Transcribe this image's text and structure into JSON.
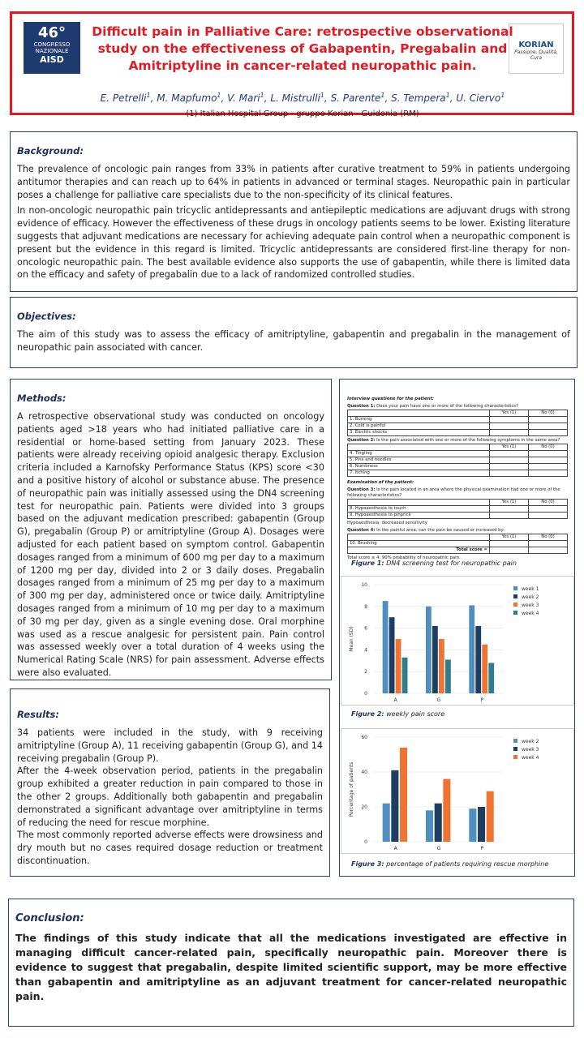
{
  "header": {
    "title": "Difficult pain in Palliative Care: retrospective observational study on the effectiveness of Gabapentin, Pregabalin and Amitriptyline in cancer-related neuropathic pain.",
    "authors": [
      {
        "name": "E. Petrelli",
        "sup": "1"
      },
      {
        "name": "M. Mapfumo",
        "sup": "1"
      },
      {
        "name": "V. Mari",
        "sup": "1"
      },
      {
        "name": "L. Mistrulli",
        "sup": "1"
      },
      {
        "name": "S. Parente",
        "sup": "1"
      },
      {
        "name": "S. Tempera",
        "sup": "1"
      },
      {
        "name": "U. Ciervo",
        "sup": "1"
      }
    ],
    "affiliation": "(1) Italian Hospital Group - gruppo Korian - Guidonia (RM)",
    "logo_left": {
      "number": "46°",
      "line1": "CONGRESSO NAZIONALE",
      "line2": "AISD"
    },
    "logo_right": {
      "name": "KORIAN",
      "tagline": "Passione, Qualità, Cura"
    }
  },
  "background": {
    "heading": "Background:",
    "paragraphs": [
      "The prevalence of oncologic pain ranges from 33% in patients after curative treatment to 59% in patients undergoing antitumor therapies and can reach up to 64% in patients in advanced or terminal stages. Neuropathic pain in particular poses a challenge for palliative care specialists due to the non-specificity of its clinical features.",
      "In non-oncologic neuropathic pain tricyclic antidepressants and antiepileptic medications are adjuvant drugs with strong evidence of efficacy. However the effectiveness of these drugs in oncology patients seems to be lower. Existing literature suggests that adjuvant medications are necessary for achieving adequate pain control when a neuropathic component is present but the evidence in this regard is limited. Tricyclic antidepressants are considered first-line therapy for non-oncologic neuropathic pain. The best available evidence also supports the use of gabapentin, while there is limited data on the efficacy and safety of pregabalin due to a lack of randomized controlled studies."
    ]
  },
  "objectives": {
    "heading": "Objectives:",
    "text": "The aim of this study was to assess the efficacy of amitriptyline, gabapentin and pregabalin in the management of neuropathic pain associated with cancer."
  },
  "methods": {
    "heading": "Methods:",
    "text": "A retrospective observational study was conducted on oncology patients aged >18 years who had initiated palliative care in a residential or home-based setting from January 2023. These patients were already receiving opioid analgesic therapy. Exclusion criteria included a Karnofsky Performance Status (KPS) score <30 and a positive history of alcohol or substance abuse. The presence of neuropathic pain was initially assessed using the DN4 screening test for neuropathic pain. Patients were divided into 3 groups based on the adjuvant medication prescribed: gabapentin (Group G), pregabalin (Group P) or amitriptyline (Group A). Dosages were adjusted for each patient based on symptom control. Gabapentin dosages ranged from a minimum of 600 mg per day to a maximum of 1200 mg per day, divided into 2 or 3 daily doses. Pregabalin dosages ranged from a minimum of 25 mg per day to a maximum of 300 mg per day, administered once or twice daily. Amitriptyline dosages ranged from a minimum of 10 mg per day to a maximum of 30 mg per day, given as a single evening dose. Oral morphine was used as a rescue analgesic for persistent pain. Pain control was assessed weekly over a total duration of 4 weeks using the Numerical Rating Scale (NRS) for pain assessment. Adverse effects were also evaluated."
  },
  "results": {
    "heading": "Results:",
    "paragraphs": [
      "34 patients were included in the study, with 9 receiving amitriptyline (Group A), 11 receiving gabapentin (Group G), and 14 receiving pregabalin (Group P).",
      "After the 4-week observation period, patients in the pregabalin group exhibited a greater reduction in pain compared to those in the other 2 groups. Additionally both gabapentin and pregabalin demonstrated a significant advantage over amitriptyline in terms of reducing the need for rescue morphine.",
      "The most commonly reported adverse effects were drowsiness and dry mouth but no cases required dosage reduction or treatment discontinuation."
    ]
  },
  "figures": [
    {
      "label": "Figure 1:",
      "caption": "DN4 screening test for neuropathic pain",
      "dn4": {
        "heading": "Interview questions for the patient:",
        "sections": [
          {
            "q_label": "Question 1:",
            "q_text": "Does your pain have one or more of the following characteristics?",
            "cols": [
              "Yes (1)",
              "No (0)"
            ],
            "items": [
              "1. Burning",
              "2. Cold is painful",
              "3. Electric shocks"
            ]
          },
          {
            "q_label": "Question 2:",
            "q_text": "Is the pain associated with one or more of the following symptoms in the same area?",
            "cols": [
              "Yes (1)",
              "No (0)"
            ],
            "items": [
              "4. Tingling",
              "5. Pins and needles",
              "6. Numbness",
              "7. Itching"
            ]
          },
          {
            "pre": "Examination of the patient:",
            "q_label": "Question 3:",
            "q_text": "Is the pain located in an area where the physical examination had one or more of the following characteristics?",
            "cols": [
              "Yes (1)",
              "No (0)"
            ],
            "items": [
              "8. Hypoaesthesia to touch",
              "9. Hypoaesthesia to pinprick"
            ],
            "note": "Hypoaesthesia: decreased sensitivity"
          },
          {
            "q_label": "Question 4:",
            "q_text": "In the painful area, can the pain be caused or increased by:",
            "cols": [
              "Yes (1)",
              "No (0)"
            ],
            "items": [
              "10. Brushing"
            ],
            "total": "Total score ="
          }
        ],
        "footer": "Total score ≥ 4: 90% probability of neuropathic pain."
      }
    },
    {
      "label": "Figure 2:",
      "caption": "weekly pain score",
      "chart": {
        "type": "bar",
        "y_label": "Mean (SD)",
        "categories": [
          "A",
          "G",
          "P"
        ],
        "ylim": [
          0,
          10
        ],
        "yticks": [
          0,
          2,
          4,
          6,
          8,
          10
        ],
        "series": [
          {
            "name": "week 1",
            "color": "#4f8fbf",
            "values": [
              8.5,
              8.0,
              8.1
            ]
          },
          {
            "name": "week 2",
            "color": "#1d3e63",
            "values": [
              7.0,
              6.2,
              6.2
            ]
          },
          {
            "name": "week 3",
            "color": "#ee7434",
            "values": [
              5.0,
              5.0,
              4.5
            ]
          },
          {
            "name": "week 4",
            "color": "#2f7c8c",
            "values": [
              3.3,
              3.1,
              2.8
            ]
          }
        ]
      }
    },
    {
      "label": "Figure 3:",
      "caption": "percentage of patients requiring rescue morphine",
      "chart": {
        "type": "bar",
        "y_label": "Percentage of patients",
        "categories": [
          "A",
          "G",
          "P"
        ],
        "ylim": [
          0,
          60
        ],
        "yticks": [
          0,
          20,
          40,
          60
        ],
        "series": [
          {
            "name": "week 2",
            "color": "#4f8fbf",
            "values": [
              22,
              18,
              19
            ]
          },
          {
            "name": "week 3",
            "color": "#1d3e63",
            "values": [
              41,
              22,
              20
            ]
          },
          {
            "name": "week 4",
            "color": "#ee7434",
            "values": [
              54,
              36,
              29
            ]
          }
        ]
      }
    }
  ],
  "conclusion": {
    "heading": "Conclusion:",
    "text": "The findings of this study indicate that all the medications investigated are effective in managing difficult cancer-related pain, specifically neuropathic pain. Moreover there is evidence to suggest that pregabalin, despite limited scientific support, may be more effective than gabapentin and amitriptyline as an adjuvant treatment for cancer-related neuropathic pain."
  }
}
